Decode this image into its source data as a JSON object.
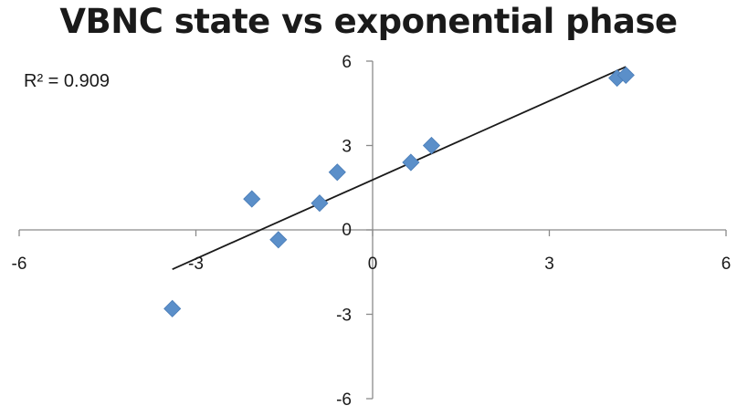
{
  "chart_data": {
    "type": "scatter",
    "title": "VBNC state vs exponential phase",
    "xlabel": "",
    "ylabel": "",
    "xlim": [
      -6,
      6
    ],
    "ylim": [
      -6,
      6
    ],
    "xticks": [
      -6,
      -3,
      0,
      3,
      6
    ],
    "yticks": [
      6,
      3,
      0,
      -3,
      -6
    ],
    "marker": "diamond",
    "marker_color": "#5b8fc9",
    "trendline": {
      "type": "linear",
      "x_start": -3.4,
      "y_start": -1.4,
      "x_end": 4.3,
      "y_end": 5.8,
      "color": "#1a1a1a"
    },
    "annotation": "R² = 0.909",
    "points": [
      {
        "x": -3.4,
        "y": -2.8
      },
      {
        "x": -2.05,
        "y": 1.1
      },
      {
        "x": -1.6,
        "y": -0.35
      },
      {
        "x": -0.9,
        "y": 0.95
      },
      {
        "x": -0.6,
        "y": 2.05
      },
      {
        "x": 0.65,
        "y": 2.4
      },
      {
        "x": 1.0,
        "y": 3.0
      },
      {
        "x": 4.15,
        "y": 5.4
      },
      {
        "x": 4.3,
        "y": 5.5
      }
    ]
  }
}
